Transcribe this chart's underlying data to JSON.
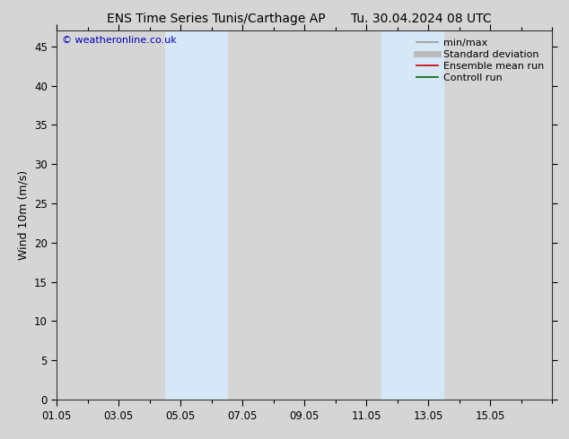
{
  "title_left": "ENS Time Series Tunis/Carthage AP",
  "title_right": "Tu. 30.04.2024 08 UTC",
  "ylabel": "Wind 10m (m/s)",
  "watermark": "© weatheronline.co.uk",
  "xlim": [
    0,
    16
  ],
  "ylim": [
    0,
    47
  ],
  "yticks": [
    0,
    5,
    10,
    15,
    20,
    25,
    30,
    35,
    40,
    45
  ],
  "xtick_labels": [
    "01.05",
    "03.05",
    "05.05",
    "07.05",
    "09.05",
    "11.05",
    "13.05",
    "15.05"
  ],
  "xtick_positions": [
    0,
    2,
    4,
    6,
    8,
    10,
    12,
    14
  ],
  "shaded_bands": [
    {
      "xmin": 3.5,
      "xmax": 5.5
    },
    {
      "xmin": 10.5,
      "xmax": 12.5
    }
  ],
  "shade_color": "#d6e8f7",
  "grid_color": "#bbbbbb",
  "bg_color": "#d5d5d5",
  "plot_bg_color": "#d5d5d5",
  "legend_items": [
    {
      "label": "min/max",
      "color": "#999999",
      "lw": 1.2
    },
    {
      "label": "Standard deviation",
      "color": "#bbbbbb",
      "lw": 5
    },
    {
      "label": "Ensemble mean run",
      "color": "#cc0000",
      "lw": 1.2
    },
    {
      "label": "Controll run",
      "color": "#006600",
      "lw": 1.2
    }
  ],
  "watermark_color": "#0000bb",
  "title_fontsize": 10,
  "axis_fontsize": 9,
  "tick_fontsize": 8.5,
  "legend_fontsize": 8
}
